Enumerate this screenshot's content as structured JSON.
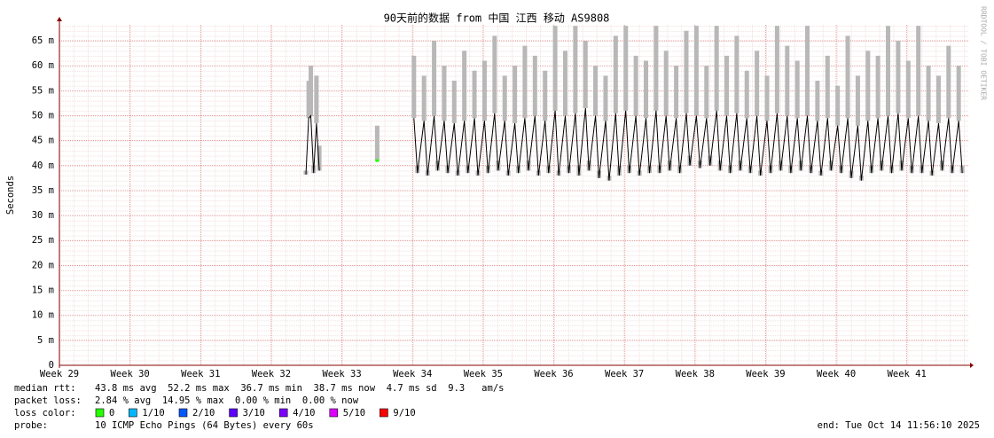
{
  "chart_data": {
    "type": "smokeping",
    "title": "90天前的数据 from 中国 江西 移动 AS9808",
    "y_label": "Seconds",
    "side_label": "RRDTOOL / TOBI OETIKER",
    "ylim": [
      0,
      68.2
    ],
    "yticks": [
      0,
      {
        "value": 5,
        "label": "5 m"
      },
      {
        "value": 10,
        "label": "10 m"
      },
      {
        "value": 15,
        "label": "15 m"
      },
      {
        "value": 20,
        "label": "20 m"
      },
      {
        "value": 25,
        "label": "25 m"
      },
      {
        "value": 30,
        "label": "30 m"
      },
      {
        "value": 35,
        "label": "35 m"
      },
      {
        "value": 40,
        "label": "40 m"
      },
      {
        "value": 45,
        "label": "45 m"
      },
      {
        "value": 50,
        "label": "50 m"
      },
      {
        "value": 55,
        "label": "55 m"
      },
      {
        "value": 60,
        "label": "60 m"
      },
      {
        "value": 65,
        "label": "65 m"
      }
    ],
    "xlim": [
      29,
      41.87
    ],
    "xticks": [
      {
        "value": 29,
        "label": "Week 29"
      },
      {
        "value": 30,
        "label": "Week 30"
      },
      {
        "value": 31,
        "label": "Week 31"
      },
      {
        "value": 32,
        "label": "Week 32"
      },
      {
        "value": 33,
        "label": "Week 33"
      },
      {
        "value": 34,
        "label": "Week 34"
      },
      {
        "value": 35,
        "label": "Week 35"
      },
      {
        "value": 36,
        "label": "Week 36"
      },
      {
        "value": 37,
        "label": "Week 37"
      },
      {
        "value": 38,
        "label": "Week 38"
      },
      {
        "value": 39,
        "label": "Week 39"
      },
      {
        "value": 40,
        "label": "Week 40"
      },
      {
        "value": 41,
        "label": "Week 41"
      }
    ],
    "grid": true,
    "median_color": "#000000",
    "smoke_color": "#b8b8b8",
    "x": [
      32.49,
      32.53,
      32.56,
      32.6,
      32.64,
      32.68,
      33.0,
      33.5,
      33.75,
      34.02,
      34.07,
      34.163,
      34.213,
      34.306,
      34.356,
      34.449,
      34.499,
      34.591,
      34.641,
      34.734,
      34.784,
      34.877,
      34.927,
      35.02,
      35.07,
      35.163,
      35.213,
      35.306,
      35.356,
      35.449,
      35.499,
      35.591,
      35.641,
      35.734,
      35.784,
      35.877,
      35.927,
      36.02,
      36.07,
      36.163,
      36.213,
      36.306,
      36.356,
      36.449,
      36.499,
      36.591,
      36.641,
      36.734,
      36.784,
      36.877,
      36.927,
      37.02,
      37.07,
      37.163,
      37.213,
      37.306,
      37.356,
      37.449,
      37.499,
      37.591,
      37.641,
      37.734,
      37.784,
      37.877,
      37.927,
      38.02,
      38.07,
      38.163,
      38.213,
      38.306,
      38.356,
      38.449,
      38.499,
      38.591,
      38.641,
      38.734,
      38.784,
      38.877,
      38.927,
      39.02,
      39.07,
      39.163,
      39.213,
      39.306,
      39.356,
      39.449,
      39.499,
      39.591,
      39.641,
      39.734,
      39.784,
      39.877,
      39.927,
      40.02,
      40.07,
      40.163,
      40.213,
      40.306,
      40.356,
      40.449,
      40.499,
      40.591,
      40.641,
      40.734,
      40.784,
      40.877,
      40.927,
      41.02,
      41.07,
      41.163,
      41.213,
      41.306,
      41.356,
      41.449,
      41.499,
      41.591,
      41.641,
      41.734,
      41.784
    ],
    "median": [
      38.2,
      49.5,
      50,
      38.5,
      48.5,
      39,
      null,
      41,
      null,
      49.5,
      38.5,
      49,
      38,
      50,
      39,
      49,
      38.5,
      48.5,
      38,
      49,
      38.5,
      49.5,
      38,
      49,
      38.5,
      50.5,
      39,
      49,
      38,
      48.5,
      38.5,
      49.5,
      39,
      50,
      38,
      49,
      38.5,
      51,
      38,
      50,
      38.5,
      50.5,
      38,
      51.5,
      39,
      50,
      37.5,
      49,
      37,
      50.5,
      38,
      51,
      38.5,
      50,
      38,
      49.5,
      38.5,
      51,
      38.5,
      50,
      39,
      49.5,
      38.5,
      50.5,
      40,
      50,
      39.5,
      49.5,
      40,
      51,
      39,
      50,
      38.5,
      50.5,
      39,
      49.5,
      38.5,
      50,
      38,
      49,
      38.5,
      50.5,
      39,
      50,
      38.5,
      49.5,
      39,
      50,
      38.5,
      49,
      38,
      49.5,
      39,
      48,
      38.5,
      49.5,
      37.5,
      48,
      37,
      49,
      38.5,
      49.5,
      39,
      50,
      38.5,
      50.5,
      39,
      49.5,
      38.5,
      50,
      38.5,
      49,
      38,
      48.5,
      39,
      49.5,
      38.5,
      49,
      38.5
    ],
    "smoke_max": [
      39,
      57,
      60,
      40,
      58,
      44,
      null,
      48,
      null,
      62,
      40,
      58,
      39,
      65,
      41,
      60,
      40,
      57,
      39,
      63,
      40,
      59,
      39,
      61,
      40,
      66,
      41,
      58,
      39,
      60,
      40,
      64,
      41,
      62,
      39,
      59,
      40,
      68,
      39,
      63,
      40,
      68,
      40,
      65,
      41,
      60,
      39,
      58,
      38,
      66,
      40,
      68,
      40,
      62,
      39,
      61,
      40,
      68,
      40,
      63,
      41,
      60,
      40,
      67,
      42,
      68,
      41,
      60,
      42,
      68,
      41,
      62,
      40,
      66,
      41,
      59,
      40,
      63,
      39,
      58,
      40,
      68,
      41,
      64,
      40,
      61,
      41,
      68,
      40,
      57,
      39,
      62,
      41,
      56,
      40,
      66,
      39,
      58,
      38,
      63,
      40,
      62,
      41,
      68,
      40,
      65,
      41,
      61,
      40,
      68,
      40,
      60,
      39,
      58,
      41,
      64,
      40,
      60,
      40
    ],
    "stats": [
      {
        "label": "median rtt:",
        "text": "43.8 ms avg  52.2 ms max  36.7 ms min  38.7 ms now  4.7 ms sd  9.3   am/s"
      },
      {
        "label": "packet loss:",
        "text": "2.84 % avg  14.95 % max  0.00 % min  0.00 % now"
      }
    ],
    "legend_title": "loss color:",
    "legend": [
      {
        "name": "0",
        "color": "#26ff00"
      },
      {
        "name": "1/10",
        "color": "#00b8ff"
      },
      {
        "name": "2/10",
        "color": "#0059ff"
      },
      {
        "name": "3/10",
        "color": "#5e00ff"
      },
      {
        "name": "4/10",
        "color": "#7e00ff"
      },
      {
        "name": "5/10",
        "color": "#dd00ff"
      },
      {
        "name": "9/10",
        "color": "#ff0000"
      }
    ],
    "probe_label": "probe:",
    "probe": "10 ICMP Echo Pings (64 Bytes) every 60s",
    "end": "end: Tue Oct 14 11:56:10 2025"
  }
}
